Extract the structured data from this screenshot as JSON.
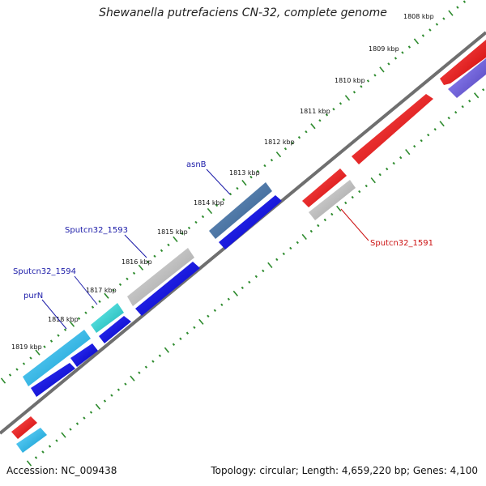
{
  "title": "Shewanella putrefaciens CN-32, complete genome",
  "accession": "Accession: NC_009438",
  "topology": "Topology: circular; Length: 4,659,220 bp; Genes: 4,100",
  "ticks": [
    "1808 kbp",
    "1809 kbp",
    "1810 kbp",
    "1811 kbp",
    "1812 kbp",
    "1813 kbp",
    "1814 kbp",
    "1815 kbp",
    "1816 kbp",
    "1817 kbp",
    "1818 kbp",
    "1819 kbp"
  ],
  "gene_labels": [
    {
      "name": "asnB",
      "color": "#1a1aa8"
    },
    {
      "name": "Sputcn32_1593",
      "color": "#1a1aa8"
    },
    {
      "name": "Sputcn32_1594",
      "color": "#1a1aa8"
    },
    {
      "name": "purN",
      "color": "#1a1aa8"
    },
    {
      "name": "Sputcn32_1591",
      "color": "#cc1111"
    }
  ],
  "colors": {
    "backbone": "#666666",
    "ticks": "#2e8b2e",
    "forward_cds": "#1010e0",
    "reverse_cds": "#ee1111",
    "highlight_blue": "#3f6fa8",
    "cyan": "#1fb8e8",
    "teal": "#22cccc",
    "grey": "#b8b8b8",
    "purple": "#6a5acd"
  }
}
